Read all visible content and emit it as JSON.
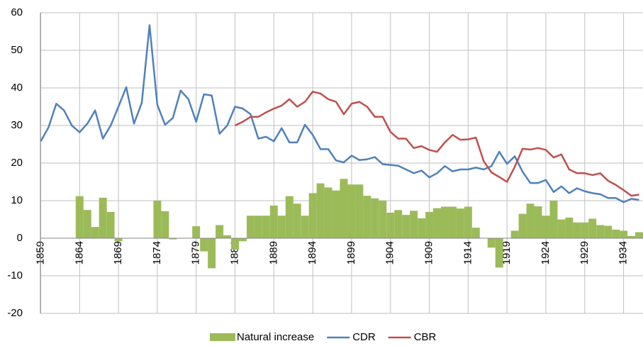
{
  "chart_data": {
    "type": "bar-line",
    "categories": [
      "1859",
      null,
      null,
      null,
      null,
      "1864",
      null,
      null,
      null,
      null,
      "1869",
      null,
      null,
      null,
      null,
      "1874",
      null,
      null,
      null,
      null,
      "1879",
      null,
      null,
      null,
      null,
      "1884",
      null,
      null,
      null,
      null,
      "1889",
      null,
      null,
      null,
      null,
      "1894",
      null,
      null,
      null,
      null,
      "1899",
      null,
      null,
      null,
      null,
      "1904",
      null,
      null,
      null,
      null,
      "1909",
      null,
      null,
      null,
      null,
      "1914",
      null,
      null,
      null,
      null,
      "1919",
      null,
      null,
      null,
      null,
      "1924",
      null,
      null,
      null,
      null,
      "1929",
      null,
      null,
      null,
      null,
      "1934",
      null,
      null
    ],
    "series": [
      {
        "name": "Natural increase",
        "type": "bar",
        "color": "#9bbb59",
        "values": [
          null,
          null,
          null,
          null,
          null,
          11.2,
          7.5,
          3,
          10.8,
          7,
          -0.8,
          null,
          null,
          null,
          null,
          10,
          7.2,
          -0.3,
          null,
          null,
          3.2,
          -3.5,
          -8,
          3.5,
          0.8,
          -3,
          -0.8,
          6,
          6,
          6,
          8.7,
          6,
          11.2,
          9.2,
          6,
          12,
          14.6,
          13.5,
          12.7,
          15.8,
          14.3,
          14.3,
          11.3,
          10.6,
          10,
          6.8,
          7.5,
          6.2,
          7.3,
          5.3,
          7,
          8,
          8.4,
          8.4,
          7.9,
          8.4,
          2.8,
          null,
          -2.5,
          -7.8,
          null,
          2,
          6.5,
          9.2,
          8.5,
          6,
          10,
          5,
          5.5,
          4.2,
          4.2,
          5.2,
          3.5,
          3.3,
          2.3,
          2,
          0.6,
          1.6
        ]
      },
      {
        "name": "CDR",
        "type": "line",
        "color": "#4f81bd",
        "values": [
          25.8,
          29.5,
          35.8,
          34,
          30,
          28.2,
          30.5,
          34,
          26.5,
          30,
          35,
          40.2,
          30.5,
          36,
          56.7,
          35.5,
          30.2,
          32,
          39.3,
          37,
          31,
          38.3,
          38,
          27.8,
          30,
          35,
          34.5,
          33,
          26.5,
          27,
          25.8,
          29.3,
          25.5,
          25.5,
          30.2,
          27.5,
          23.7,
          23.7,
          20.7,
          20.2,
          22,
          20.8,
          21,
          21.6,
          19.7,
          19.5,
          19.3,
          18.3,
          17.3,
          18,
          16.2,
          17.3,
          19.2,
          17.8,
          18.3,
          18.3,
          18.8,
          18.3,
          19.2,
          23,
          19.8,
          21.8,
          17.7,
          14.7,
          14.7,
          15.5,
          12.3,
          13.8,
          12,
          13.3,
          12.5,
          12,
          11.7,
          10.7,
          10.7,
          9.6,
          10.5,
          10.2
        ]
      },
      {
        "name": "CBR",
        "type": "line",
        "color": "#c0504d",
        "values": [
          null,
          null,
          null,
          null,
          null,
          null,
          null,
          null,
          null,
          null,
          null,
          null,
          null,
          null,
          null,
          null,
          null,
          null,
          null,
          null,
          null,
          null,
          null,
          null,
          null,
          30,
          31,
          32.3,
          32.3,
          33.5,
          34.5,
          35.3,
          37,
          35,
          36.3,
          39,
          38.5,
          37,
          36.3,
          33,
          35.8,
          36.3,
          35,
          32.3,
          32.3,
          28.3,
          26.5,
          26.5,
          24,
          24.5,
          23.5,
          23,
          25.5,
          27.5,
          26.2,
          26.3,
          26.8,
          20.5,
          17.5,
          16.3,
          15,
          19,
          23.8,
          23.6,
          24,
          23.5,
          21.5,
          22.3,
          18.3,
          17.3,
          17.3,
          16.8,
          17.3,
          15.3,
          14.2,
          12.8,
          11.3,
          11.6
        ]
      }
    ],
    "ylim": [
      -20,
      60
    ],
    "yticks": [
      -20,
      -10,
      0,
      10,
      20,
      30,
      40,
      50,
      60
    ],
    "grid": true
  }
}
